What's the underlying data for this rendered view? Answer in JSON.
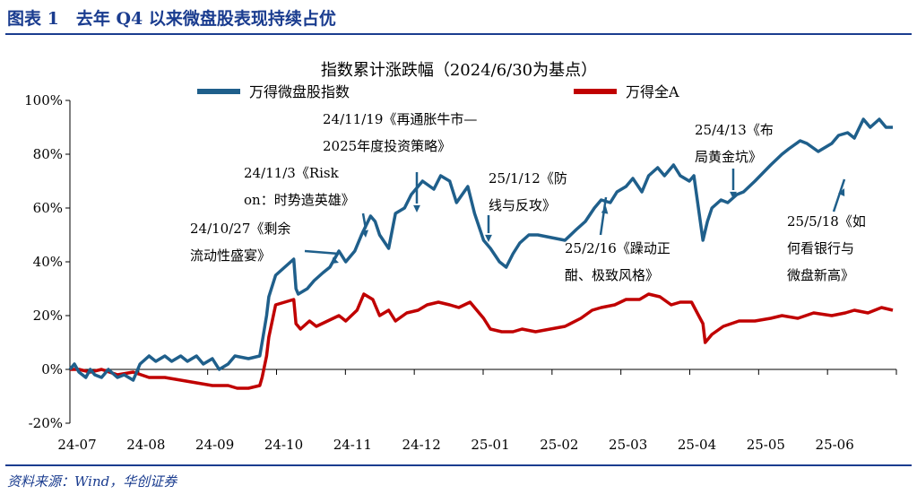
{
  "figure": {
    "title": "图表 1　去年 Q4 以来微盘股表现持续占优",
    "source": "资料来源：Wind，华创证券"
  },
  "colors": {
    "series_0": "#1f5f8b",
    "series_1": "#c00000",
    "axis": "#000000",
    "title_bar": "#1a3c8f"
  },
  "chart_data": {
    "type": "line",
    "title": "指数累计涨跌幅（2024/6/30为基点）",
    "xlabel": "",
    "ylabel": "",
    "ylim": [
      -0.2,
      1.0
    ],
    "yticks": [
      "-20%",
      "0%",
      "20%",
      "40%",
      "60%",
      "80%",
      "100%"
    ],
    "x_range": [
      "2024-07-01",
      "2025-06-30"
    ],
    "xticks": [
      "24-07",
      "24-08",
      "24-09",
      "24-10",
      "24-11",
      "24-12",
      "25-01",
      "25-02",
      "25-03",
      "25-04",
      "25-05",
      "25-06"
    ],
    "legend_position": "top",
    "grid": false,
    "series": [
      {
        "name": "万得微盘股指数",
        "x": [
          "2024-07-01",
          "2024-07-03",
          "2024-07-05",
          "2024-07-08",
          "2024-07-10",
          "2024-07-12",
          "2024-07-15",
          "2024-07-18",
          "2024-07-22",
          "2024-07-25",
          "2024-07-29",
          "2024-08-01",
          "2024-08-05",
          "2024-08-08",
          "2024-08-12",
          "2024-08-15",
          "2024-08-19",
          "2024-08-22",
          "2024-08-26",
          "2024-08-29",
          "2024-09-02",
          "2024-09-05",
          "2024-09-09",
          "2024-09-12",
          "2024-09-18",
          "2024-09-23",
          "2024-09-24",
          "2024-09-25",
          "2024-09-26",
          "2024-09-27",
          "2024-09-30",
          "2024-10-08",
          "2024-10-09",
          "2024-10-10",
          "2024-10-14",
          "2024-10-17",
          "2024-10-21",
          "2024-10-24",
          "2024-10-28",
          "2024-10-31",
          "2024-11-04",
          "2024-11-07",
          "2024-11-11",
          "2024-11-13",
          "2024-11-15",
          "2024-11-19",
          "2024-11-22",
          "2024-11-26",
          "2024-11-29",
          "2024-12-04",
          "2024-12-09",
          "2024-12-12",
          "2024-12-16",
          "2024-12-19",
          "2024-12-24",
          "2024-12-27",
          "2024-12-31",
          "2025-01-03",
          "2025-01-07",
          "2025-01-10",
          "2025-01-13",
          "2025-01-16",
          "2025-01-20",
          "2025-01-24",
          "2025-02-05",
          "2025-02-10",
          "2025-02-14",
          "2025-02-18",
          "2025-02-21",
          "2025-02-25",
          "2025-02-28",
          "2025-03-04",
          "2025-03-07",
          "2025-03-11",
          "2025-03-14",
          "2025-03-18",
          "2025-03-21",
          "2025-03-25",
          "2025-03-28",
          "2025-04-01",
          "2025-04-03",
          "2025-04-07",
          "2025-04-09",
          "2025-04-11",
          "2025-04-15",
          "2025-04-18",
          "2025-04-22",
          "2025-04-25",
          "2025-04-30",
          "2025-05-07",
          "2025-05-12",
          "2025-05-15",
          "2025-05-20",
          "2025-05-23",
          "2025-05-28",
          "2025-06-03",
          "2025-06-06",
          "2025-06-10",
          "2025-06-13",
          "2025-06-17",
          "2025-06-20",
          "2025-06-24",
          "2025-06-27",
          "2025-06-30"
        ],
        "values": [
          0.0,
          0.02,
          -0.01,
          -0.03,
          0.0,
          -0.02,
          -0.03,
          0.0,
          -0.03,
          -0.02,
          -0.04,
          0.02,
          0.05,
          0.03,
          0.05,
          0.03,
          0.05,
          0.03,
          0.05,
          0.02,
          0.04,
          0.0,
          0.02,
          0.05,
          0.04,
          0.05,
          0.1,
          0.15,
          0.2,
          0.27,
          0.35,
          0.41,
          0.3,
          0.28,
          0.3,
          0.33,
          0.36,
          0.38,
          0.44,
          0.4,
          0.44,
          0.5,
          0.57,
          0.55,
          0.5,
          0.45,
          0.58,
          0.6,
          0.65,
          0.7,
          0.67,
          0.72,
          0.7,
          0.62,
          0.68,
          0.58,
          0.48,
          0.45,
          0.4,
          0.38,
          0.43,
          0.47,
          0.5,
          0.5,
          0.48,
          0.52,
          0.55,
          0.6,
          0.63,
          0.62,
          0.66,
          0.68,
          0.71,
          0.66,
          0.72,
          0.75,
          0.72,
          0.76,
          0.72,
          0.7,
          0.72,
          0.48,
          0.55,
          0.6,
          0.63,
          0.62,
          0.65,
          0.66,
          0.7,
          0.76,
          0.8,
          0.82,
          0.85,
          0.84,
          0.81,
          0.84,
          0.87,
          0.88,
          0.86,
          0.93,
          0.9,
          0.93,
          0.9,
          0.9
        ]
      },
      {
        "name": "万得全A",
        "x": [
          "2024-07-01",
          "2024-07-05",
          "2024-07-10",
          "2024-07-15",
          "2024-07-22",
          "2024-07-29",
          "2024-08-05",
          "2024-08-12",
          "2024-08-19",
          "2024-08-26",
          "2024-09-02",
          "2024-09-09",
          "2024-09-13",
          "2024-09-18",
          "2024-09-23",
          "2024-09-24",
          "2024-09-26",
          "2024-09-27",
          "2024-09-30",
          "2024-10-08",
          "2024-10-09",
          "2024-10-11",
          "2024-10-15",
          "2024-10-18",
          "2024-10-23",
          "2024-10-28",
          "2024-10-31",
          "2024-11-05",
          "2024-11-08",
          "2024-11-12",
          "2024-11-15",
          "2024-11-19",
          "2024-11-22",
          "2024-11-27",
          "2024-12-02",
          "2024-12-06",
          "2024-12-11",
          "2024-12-16",
          "2024-12-20",
          "2024-12-25",
          "2024-12-31",
          "2025-01-03",
          "2025-01-08",
          "2025-01-13",
          "2025-01-17",
          "2025-01-23",
          "2025-02-05",
          "2025-02-12",
          "2025-02-17",
          "2025-02-21",
          "2025-02-27",
          "2025-03-04",
          "2025-03-10",
          "2025-03-14",
          "2025-03-19",
          "2025-03-24",
          "2025-03-28",
          "2025-04-02",
          "2025-04-07",
          "2025-04-08",
          "2025-04-11",
          "2025-04-16",
          "2025-04-23",
          "2025-04-30",
          "2025-05-07",
          "2025-05-12",
          "2025-05-19",
          "2025-05-26",
          "2025-06-03",
          "2025-06-09",
          "2025-06-13",
          "2025-06-19",
          "2025-06-25",
          "2025-06-30"
        ],
        "values": [
          0.0,
          0.0,
          -0.01,
          0.0,
          -0.02,
          -0.01,
          -0.03,
          -0.03,
          -0.04,
          -0.05,
          -0.06,
          -0.06,
          -0.07,
          -0.07,
          -0.06,
          -0.03,
          0.05,
          0.12,
          0.24,
          0.26,
          0.17,
          0.15,
          0.18,
          0.16,
          0.18,
          0.2,
          0.18,
          0.22,
          0.28,
          0.26,
          0.2,
          0.22,
          0.18,
          0.21,
          0.22,
          0.24,
          0.25,
          0.24,
          0.23,
          0.25,
          0.19,
          0.15,
          0.14,
          0.14,
          0.15,
          0.14,
          0.16,
          0.19,
          0.22,
          0.23,
          0.24,
          0.26,
          0.26,
          0.28,
          0.27,
          0.24,
          0.25,
          0.25,
          0.17,
          0.1,
          0.13,
          0.16,
          0.18,
          0.18,
          0.19,
          0.2,
          0.19,
          0.21,
          0.2,
          0.21,
          0.22,
          0.21,
          0.23,
          0.22
        ]
      }
    ],
    "annotations": [
      {
        "lines": [
          "24/10/27《剩余",
          "流动性盛宴》"
        ],
        "date": "2024-10-27",
        "value": 0.39
      },
      {
        "lines": [
          "24/11/3《Risk",
          "on：时势造英雄》"
        ],
        "date": "2024-11-03",
        "value": 0.45
      },
      {
        "lines": [
          "24/11/19《再通胀牛市—",
          "2025年度投资策略》"
        ],
        "date": "2024-11-19",
        "value": 0.59
      },
      {
        "lines": [
          "25/1/12《防",
          "线与反攻》"
        ],
        "date": "2025-01-12",
        "value": 0.45
      },
      {
        "lines": [
          "25/2/16《躁动正",
          "酣、极致风格》"
        ],
        "date": "2025-02-16",
        "value": 0.6
      },
      {
        "lines": [
          "25/4/13《布",
          "局黄金坑》"
        ],
        "date": "2025-04-13",
        "value": 0.62
      },
      {
        "lines": [
          "25/5/18《如",
          "何看银行与",
          "微盘新高》"
        ],
        "date": "2025-05-18",
        "value": 0.82
      }
    ]
  }
}
